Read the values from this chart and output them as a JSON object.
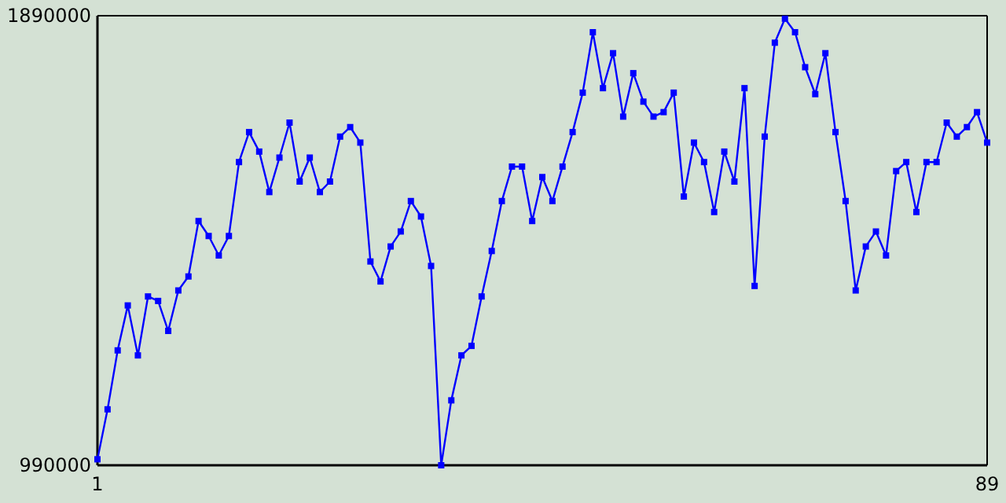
{
  "chart_data": {
    "type": "line",
    "marker": "square",
    "xlim": [
      1,
      89
    ],
    "xticks": [
      1,
      89
    ],
    "ylim": [
      990000,
      1890000
    ],
    "yticks": [
      990000,
      1890000
    ],
    "x": [
      1,
      2,
      3,
      4,
      5,
      6,
      7,
      8,
      9,
      10,
      11,
      12,
      13,
      14,
      15,
      16,
      17,
      18,
      19,
      20,
      21,
      22,
      23,
      24,
      25,
      26,
      27,
      28,
      29,
      30,
      31,
      32,
      33,
      34,
      35,
      36,
      37,
      38,
      39,
      40,
      41,
      42,
      43,
      44,
      45,
      46,
      47,
      48,
      49,
      50,
      51,
      52,
      53,
      54,
      55,
      56,
      57,
      58,
      59,
      60,
      61,
      62,
      63,
      64,
      65,
      66,
      67,
      68,
      69,
      70,
      71,
      72,
      73,
      74,
      75,
      76,
      77,
      78,
      79,
      80,
      81,
      82,
      83,
      84,
      85,
      86,
      87,
      88,
      89
    ],
    "series": [
      {
        "color": "#0000ff",
        "values": [
          1002000,
          1102000,
          1220000,
          1310000,
          1210000,
          1328000,
          1319000,
          1259000,
          1340000,
          1368000,
          1479000,
          1449000,
          1410000,
          1449000,
          1597000,
          1657000,
          1618000,
          1537000,
          1606000,
          1676000,
          1558000,
          1606000,
          1537000,
          1558000,
          1648000,
          1667000,
          1636000,
          1398000,
          1358000,
          1428000,
          1458000,
          1519000,
          1488000,
          1389000,
          990000,
          1120000,
          1210000,
          1229000,
          1328000,
          1419000,
          1519000,
          1588000,
          1588000,
          1479000,
          1567000,
          1519000,
          1588000,
          1657000,
          1736000,
          1857000,
          1745000,
          1815000,
          1688000,
          1775000,
          1718000,
          1688000,
          1697000,
          1736000,
          1528000,
          1636000,
          1597000,
          1497000,
          1618000,
          1558000,
          1745000,
          1349000,
          1648000,
          1836000,
          1884000,
          1857000,
          1787000,
          1733000,
          1815000,
          1657000,
          1519000,
          1340000,
          1428000,
          1458000,
          1410000,
          1579000,
          1597000,
          1497000,
          1597000,
          1597000,
          1676000,
          1648000,
          1667000,
          1697000,
          1636000
        ]
      }
    ]
  }
}
